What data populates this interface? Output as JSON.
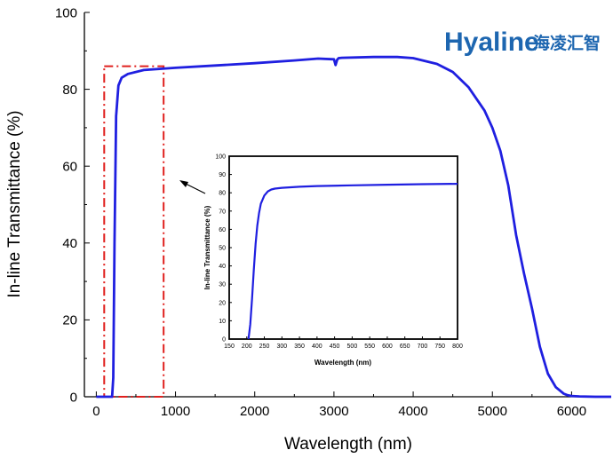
{
  "chart_data": [
    {
      "type": "line",
      "xlabel": "Wavelength (nm)",
      "ylabel": "In-line  Transmittance (%)",
      "xlim": [
        -150,
        6500
      ],
      "ylim": [
        0,
        100
      ],
      "x_ticks": [
        0,
        1000,
        2000,
        3000,
        4000,
        5000,
        6000
      ],
      "y_ticks": [
        0,
        20,
        40,
        60,
        80,
        100
      ],
      "grid": false,
      "series": [
        {
          "color": "#1f1fe0",
          "x": [
            0,
            150,
            200,
            215,
            230,
            250,
            280,
            320,
            400,
            600,
            1000,
            1500,
            2000,
            2500,
            2800,
            3000,
            3020,
            3040,
            3060,
            3100,
            3500,
            3800,
            4000,
            4300,
            4500,
            4700,
            4900,
            5000,
            5100,
            5200,
            5300,
            5400,
            5500,
            5600,
            5700,
            5800,
            5900,
            5950,
            6000,
            6100,
            6300,
            6500
          ],
          "values": [
            0,
            0,
            0,
            5,
            40,
            73,
            81,
            83,
            84,
            85,
            85.6,
            86.2,
            86.8,
            87.5,
            88,
            87.8,
            86.3,
            87.7,
            88.1,
            88.2,
            88.4,
            88.4,
            88.1,
            86.6,
            84.5,
            80.5,
            74.5,
            70,
            64,
            55,
            42,
            32,
            23,
            13,
            6,
            2.5,
            0.8,
            0.4,
            0.2,
            0.1,
            0,
            0
          ]
        }
      ],
      "highlight_box": {
        "x": [
          100,
          850
        ],
        "y": [
          0,
          86
        ],
        "color": "#e0201e",
        "style": "dash-dot"
      }
    },
    {
      "type": "line",
      "xlabel": "Wavelength (nm)",
      "ylabel": "In-line  Transmittance (%)",
      "xlim": [
        150,
        800
      ],
      "ylim": [
        0,
        100
      ],
      "x_ticks": [
        150,
        200,
        250,
        300,
        350,
        400,
        450,
        500,
        550,
        600,
        650,
        700,
        750,
        800
      ],
      "y_ticks": [
        0,
        10,
        20,
        30,
        40,
        50,
        60,
        70,
        80,
        90,
        100
      ],
      "grid": false,
      "series": [
        {
          "color": "#1f1fe0",
          "x": [
            205,
            210,
            215,
            220,
            225,
            230,
            235,
            240,
            250,
            260,
            270,
            280,
            300,
            350,
            400,
            500,
            600,
            700,
            800
          ],
          "values": [
            0,
            8,
            22,
            38,
            52,
            62,
            69,
            74,
            78.5,
            80.8,
            81.8,
            82.3,
            82.7,
            83.3,
            83.7,
            84.1,
            84.4,
            84.7,
            84.9
          ]
        }
      ]
    }
  ],
  "logo": {
    "text": "Hyaline",
    "cjk": "海凌汇智"
  }
}
